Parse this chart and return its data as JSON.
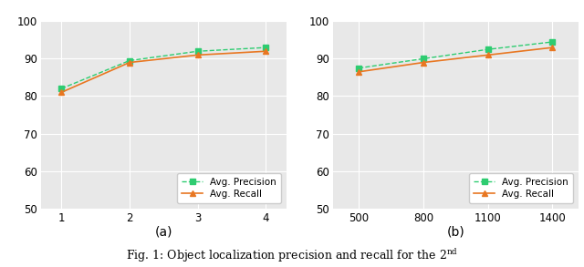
{
  "subplot_a": {
    "x": [
      1,
      2,
      3,
      4
    ],
    "precision": [
      82.0,
      89.5,
      92.0,
      93.0
    ],
    "recall": [
      81.0,
      89.0,
      91.0,
      92.0
    ],
    "xlabel_label": "(a)",
    "xlim": [
      0.7,
      4.3
    ],
    "ylim": [
      50,
      100
    ],
    "xticks": [
      1,
      2,
      3,
      4
    ],
    "yticks": [
      50,
      60,
      70,
      80,
      90,
      100
    ]
  },
  "subplot_b": {
    "x": [
      500,
      800,
      1100,
      1400
    ],
    "precision": [
      87.5,
      90.0,
      92.5,
      94.5
    ],
    "recall": [
      86.5,
      89.0,
      91.0,
      93.0
    ],
    "xlabel_label": "(b)",
    "xlim": [
      380,
      1520
    ],
    "ylim": [
      50,
      100
    ],
    "xticks": [
      500,
      800,
      1100,
      1400
    ],
    "yticks": [
      50,
      60,
      70,
      80,
      90,
      100
    ]
  },
  "precision_color": "#2ecc71",
  "recall_color": "#e87722",
  "precision_label": "Avg. Precision",
  "recall_label": "Avg. Recall",
  "caption_text": "Fig. 1: Object localization precision and recall for the 2",
  "caption_super": "nd",
  "fig_bg_color": "#ffffff",
  "axes_bg_color": "#e8e8e8",
  "grid_color": "#ffffff",
  "legend_fontsize": 7.5,
  "tick_fontsize": 8.5,
  "caption_fontsize": 9
}
